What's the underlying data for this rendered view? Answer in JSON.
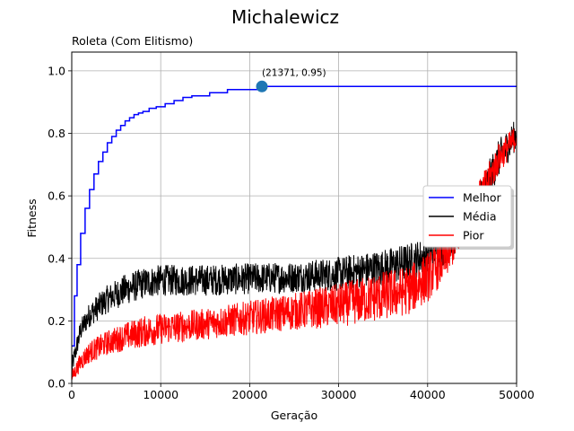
{
  "figure": {
    "title": "Michalewicz",
    "subtitle": "Roleta (Com Elitismo)"
  },
  "chart_data": {
    "type": "line",
    "title": "Michalewicz",
    "subtitle": "Roleta (Com Elitismo)",
    "xlabel": "Geração",
    "ylabel": "Fitness",
    "xlim": [
      0,
      50000
    ],
    "ylim": [
      0,
      1.06
    ],
    "xticks": [
      0,
      10000,
      20000,
      30000,
      40000,
      50000
    ],
    "xtick_labels": [
      "0",
      "10000",
      "20000",
      "30000",
      "40000",
      "50000"
    ],
    "yticks": [
      0.0,
      0.2,
      0.4,
      0.6,
      0.8,
      1.0
    ],
    "ytick_labels": [
      "0.0",
      "0.2",
      "0.4",
      "0.6",
      "0.8",
      "1.0"
    ],
    "grid": true,
    "legend_position": "right",
    "series": [
      {
        "name": "Melhor",
        "color": "#0000ff",
        "style": "step",
        "x": [
          0,
          300,
          600,
          1000,
          1500,
          2000,
          2500,
          3000,
          3500,
          4000,
          4500,
          5000,
          5500,
          6000,
          6500,
          7000,
          7500,
          8000,
          8700,
          9500,
          10500,
          11500,
          12500,
          13500,
          15500,
          17500,
          21371,
          50000
        ],
        "y": [
          0.12,
          0.28,
          0.38,
          0.48,
          0.56,
          0.62,
          0.67,
          0.71,
          0.74,
          0.77,
          0.79,
          0.81,
          0.825,
          0.84,
          0.85,
          0.86,
          0.865,
          0.87,
          0.88,
          0.885,
          0.895,
          0.905,
          0.915,
          0.92,
          0.93,
          0.94,
          0.95,
          0.95
        ]
      },
      {
        "name": "Média",
        "color": "#000000",
        "style": "noisy",
        "x": [
          0,
          1000,
          2000,
          4000,
          6000,
          8000,
          10000,
          15000,
          20000,
          25000,
          30000,
          35000,
          38000,
          40000,
          42000,
          44000,
          46000,
          48000,
          50000
        ],
        "y": [
          0.05,
          0.17,
          0.22,
          0.27,
          0.3,
          0.32,
          0.33,
          0.33,
          0.335,
          0.34,
          0.35,
          0.37,
          0.39,
          0.41,
          0.44,
          0.5,
          0.6,
          0.72,
          0.8
        ],
        "noise": [
          0.03,
          0.035,
          0.04,
          0.045,
          0.05,
          0.05,
          0.05,
          0.05,
          0.05,
          0.05,
          0.055,
          0.06,
          0.06,
          0.06,
          0.06,
          0.06,
          0.06,
          0.06,
          0.05
        ]
      },
      {
        "name": "Pior",
        "color": "#ff0000",
        "style": "noisy",
        "x": [
          0,
          1000,
          2000,
          4000,
          6000,
          8000,
          10000,
          15000,
          20000,
          25000,
          30000,
          35000,
          38000,
          40000,
          42000,
          44000,
          46000,
          48000,
          50000
        ],
        "y": [
          0.02,
          0.07,
          0.1,
          0.13,
          0.15,
          0.165,
          0.175,
          0.19,
          0.21,
          0.23,
          0.25,
          0.28,
          0.3,
          0.34,
          0.4,
          0.5,
          0.6,
          0.72,
          0.79
        ],
        "noise": [
          0.02,
          0.03,
          0.035,
          0.04,
          0.045,
          0.05,
          0.05,
          0.05,
          0.055,
          0.06,
          0.07,
          0.08,
          0.08,
          0.08,
          0.07,
          0.06,
          0.06,
          0.05,
          0.04
        ]
      }
    ],
    "annotation": {
      "x": 21371,
      "y": 0.95,
      "text": "(21371, 0.95)",
      "marker_color": "#1f77b4"
    }
  }
}
